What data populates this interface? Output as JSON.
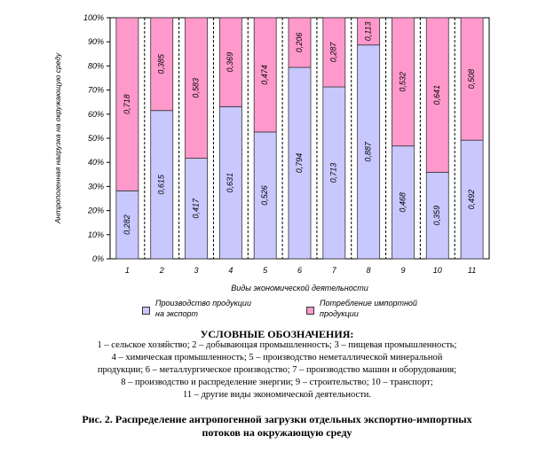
{
  "chart_data": {
    "type": "bar",
    "stacked": "percent",
    "categories": [
      "1",
      "2",
      "3",
      "4",
      "5",
      "6",
      "7",
      "8",
      "9",
      "10",
      "11"
    ],
    "series": [
      {
        "name": "Производство продукции на экспорт",
        "color": "#c8c8ff",
        "values": [
          0.282,
          0.615,
          0.417,
          0.631,
          0.526,
          0.794,
          0.713,
          0.887,
          0.468,
          0.359,
          0.492
        ],
        "labels": [
          "0,282",
          "0,615",
          "0,417",
          "0,631",
          "0,526",
          "0,794",
          "0,713",
          "0,887",
          "0,468",
          "0,359",
          "0,492"
        ]
      },
      {
        "name": "Потребление импортной продукции",
        "color": "#ff99cc",
        "values": [
          0.718,
          0.385,
          0.583,
          0.369,
          0.474,
          0.206,
          0.287,
          0.113,
          0.532,
          0.641,
          0.508
        ],
        "labels": [
          "0,718",
          "0,385",
          "0,583",
          "0,369",
          "0,474",
          "0,206",
          "0,287",
          "0,113",
          "0,532",
          "0,641",
          "0,508"
        ]
      }
    ],
    "yticks": [
      "0%",
      "10%",
      "20%",
      "30%",
      "40%",
      "50%",
      "60%",
      "70%",
      "80%",
      "90%",
      "100%"
    ],
    "ylim": [
      0,
      1
    ],
    "xlabel": "Виды экономической деятельности",
    "ylabel": "Антропогенная нагрузка на окружающую среду",
    "grid": "vertical dashed",
    "legend_position": "bottom"
  },
  "notes": {
    "title": "УСЛОВНЫЕ ОБОЗНАЧЕНИЯ:",
    "line1": "1 – сельское хозяйство; 2 – добывающая промышленность; 3 – пищевая промышленность;",
    "line2": "4 – химическая промышленность; 5 – производство неметаллической минеральной",
    "line3": "продукции; 6 – металлургическое производство; 7 – производство машин и оборудования;",
    "line4": "8 – производство и распределение энергии; 9 – строительство; 10 – транспорт;",
    "line5": "11 – другие виды экономической деятельности."
  },
  "figure_caption": "Рис. 2. Распределение антропогенной загрузки отдельных экспортно-импортных потоков на окружающую среду"
}
